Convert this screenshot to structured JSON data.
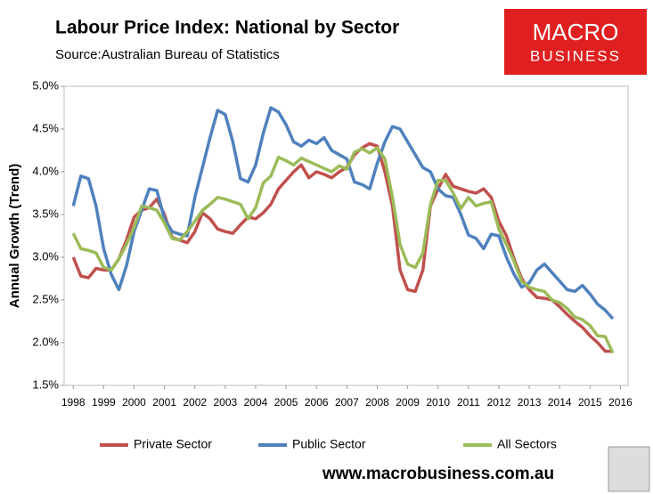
{
  "chart_data": {
    "type": "line",
    "title": "Labour Price Index: National by Sector",
    "subtitle": "Source:Australian Bureau of Statistics",
    "y_label": "Annual Growth (Trend)",
    "logo": [
      "MACRO",
      "BUSINESS"
    ],
    "footer": "www.macrobusiness.com.au",
    "x": [
      1998,
      1998.25,
      1998.5,
      1998.75,
      1999,
      1999.25,
      1999.5,
      1999.75,
      2000,
      2000.25,
      2000.5,
      2000.75,
      2001,
      2001.25,
      2001.5,
      2001.75,
      2002,
      2002.25,
      2002.5,
      2002.75,
      2003,
      2003.25,
      2003.5,
      2003.75,
      2004,
      2004.25,
      2004.5,
      2004.75,
      2005,
      2005.25,
      2005.5,
      2005.75,
      2006,
      2006.25,
      2006.5,
      2006.75,
      2007,
      2007.25,
      2007.5,
      2007.75,
      2008,
      2008.25,
      2008.5,
      2008.75,
      2009,
      2009.25,
      2009.5,
      2009.75,
      2010,
      2010.25,
      2010.5,
      2010.75,
      2011,
      2011.25,
      2011.5,
      2011.75,
      2012,
      2012.25,
      2012.5,
      2012.75,
      2013,
      2013.25,
      2013.5,
      2013.75,
      2014,
      2014.25,
      2014.5,
      2014.75,
      2015,
      2015.25,
      2015.5,
      2015.75
    ],
    "series": [
      {
        "name": "Private Sector",
        "color": "#c0504d",
        "values": [
          3.0,
          2.78,
          2.76,
          2.87,
          2.85,
          2.85,
          2.98,
          3.2,
          3.47,
          3.55,
          3.58,
          3.68,
          3.5,
          3.23,
          3.2,
          3.17,
          3.3,
          3.52,
          3.45,
          3.33,
          3.3,
          3.28,
          3.38,
          3.47,
          3.45,
          3.52,
          3.62,
          3.8,
          3.9,
          4.0,
          4.08,
          3.93,
          4.0,
          3.97,
          3.93,
          4.0,
          4.05,
          4.2,
          4.28,
          4.33,
          4.3,
          4.0,
          3.6,
          2.85,
          2.62,
          2.6,
          2.85,
          3.6,
          3.8,
          3.97,
          3.83,
          3.8,
          3.77,
          3.75,
          3.8,
          3.7,
          3.42,
          3.25,
          2.98,
          2.75,
          2.62,
          2.53,
          2.52,
          2.5,
          2.42,
          2.33,
          2.25,
          2.18,
          2.08,
          2.0,
          1.9,
          1.9
        ]
      },
      {
        "name": "Public Sector",
        "color": "#4f81bd",
        "values": [
          3.6,
          3.95,
          3.92,
          3.6,
          3.1,
          2.8,
          2.62,
          2.9,
          3.3,
          3.55,
          3.8,
          3.78,
          3.45,
          3.3,
          3.27,
          3.25,
          3.7,
          4.05,
          4.4,
          4.72,
          4.67,
          4.35,
          3.92,
          3.88,
          4.08,
          4.45,
          4.75,
          4.7,
          4.55,
          4.35,
          4.3,
          4.37,
          4.33,
          4.4,
          4.25,
          4.2,
          4.15,
          3.88,
          3.85,
          3.8,
          4.1,
          4.35,
          4.53,
          4.5,
          4.35,
          4.2,
          4.05,
          4.0,
          3.8,
          3.72,
          3.7,
          3.5,
          3.26,
          3.22,
          3.1,
          3.27,
          3.25,
          3.0,
          2.8,
          2.65,
          2.7,
          2.85,
          2.92,
          2.82,
          2.72,
          2.62,
          2.6,
          2.67,
          2.57,
          2.45,
          2.38,
          2.28
        ]
      },
      {
        "name": "All Sectors",
        "color": "#9bbb59",
        "values": [
          3.28,
          3.1,
          3.08,
          3.05,
          2.88,
          2.85,
          2.98,
          3.15,
          3.35,
          3.6,
          3.58,
          3.55,
          3.4,
          3.22,
          3.2,
          3.3,
          3.42,
          3.55,
          3.62,
          3.7,
          3.68,
          3.65,
          3.62,
          3.45,
          3.58,
          3.87,
          3.95,
          4.17,
          4.13,
          4.08,
          4.16,
          4.12,
          4.08,
          4.04,
          4.0,
          4.07,
          4.03,
          4.23,
          4.27,
          4.22,
          4.28,
          4.15,
          3.7,
          3.15,
          2.92,
          2.88,
          3.05,
          3.62,
          3.9,
          3.9,
          3.75,
          3.57,
          3.7,
          3.6,
          3.63,
          3.65,
          3.33,
          3.15,
          2.95,
          2.72,
          2.65,
          2.62,
          2.6,
          2.5,
          2.47,
          2.4,
          2.3,
          2.27,
          2.2,
          2.08,
          2.07,
          1.88
        ]
      }
    ],
    "xlim": [
      1997.7,
      2016.25
    ],
    "xticks": [
      1998,
      1999,
      2000,
      2001,
      2002,
      2003,
      2004,
      2005,
      2006,
      2007,
      2008,
      2009,
      2010,
      2011,
      2012,
      2013,
      2014,
      2015,
      2016
    ],
    "ylim": [
      1.5,
      5.0
    ],
    "yticks": [
      {
        "value": 1.5,
        "label": "1.5%"
      },
      {
        "value": 2.0,
        "label": "2.0%"
      },
      {
        "value": 2.5,
        "label": "2.5%"
      },
      {
        "value": 3.0,
        "label": "3.0%"
      },
      {
        "value": 3.5,
        "label": "3.5%"
      },
      {
        "value": 4.0,
        "label": "4.0%"
      },
      {
        "value": 4.5,
        "label": "4.5%"
      },
      {
        "value": 5.0,
        "label": "5.0%"
      }
    ],
    "grid": false,
    "legend": "bottom"
  }
}
